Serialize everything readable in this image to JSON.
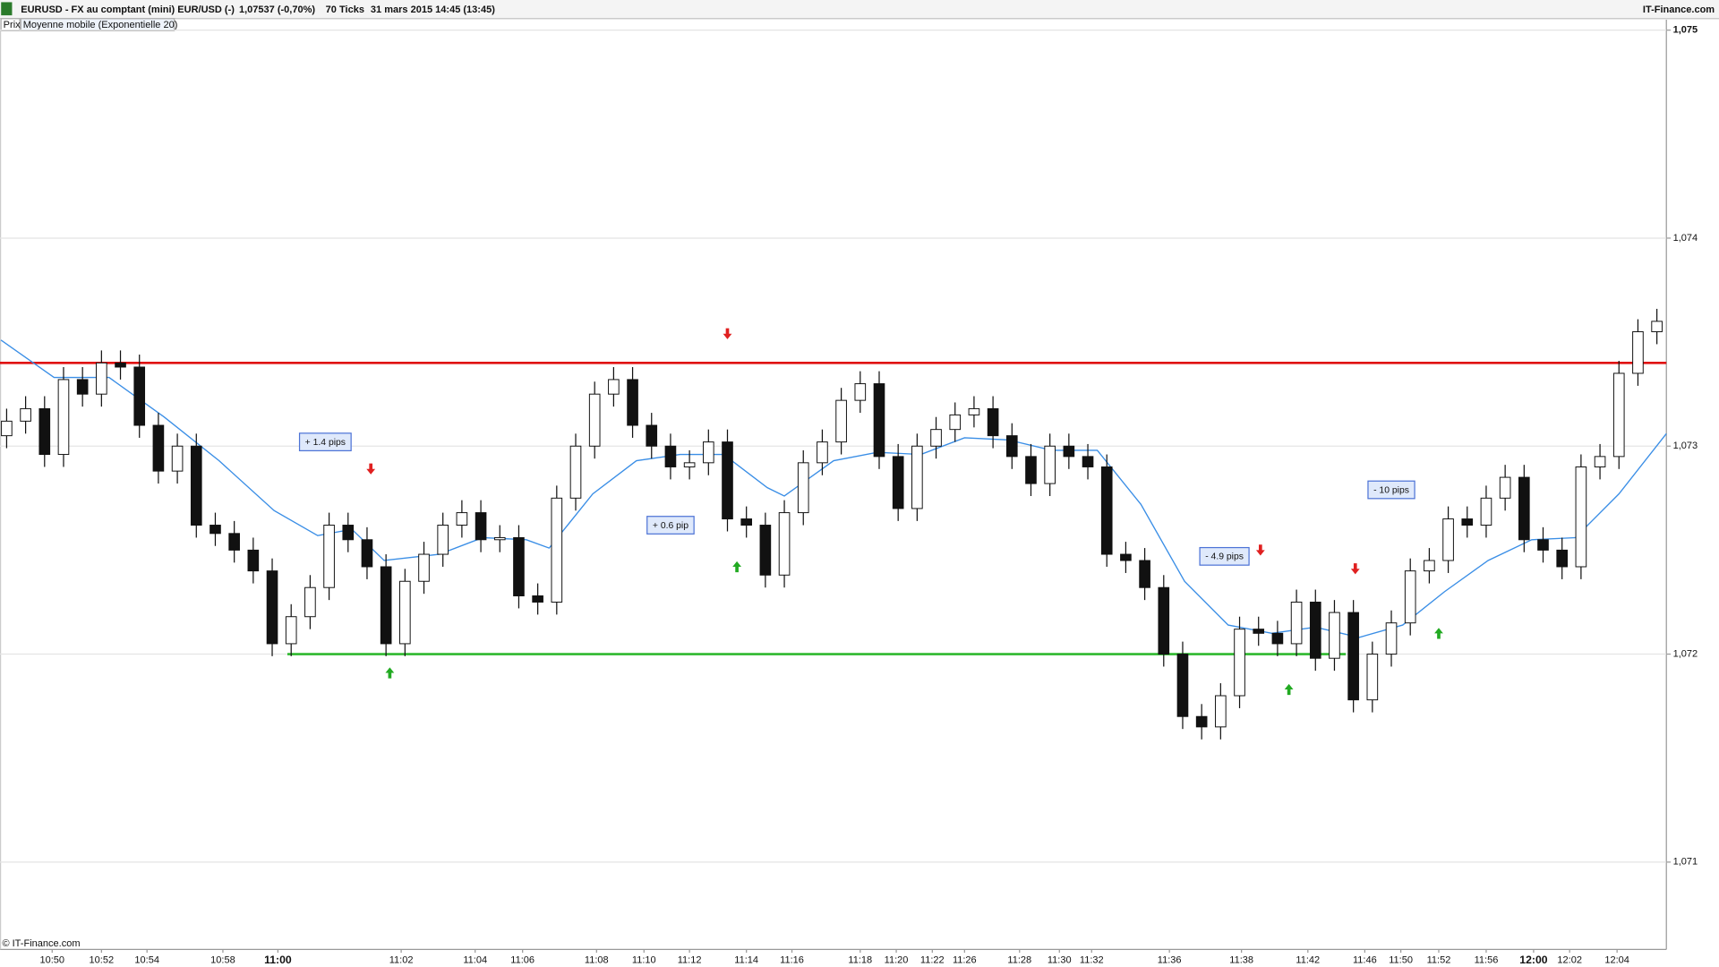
{
  "chart_data": {
    "type": "candlestick",
    "title": "EURUSD - FX au comptant (mini) EUR/USD (-)",
    "last_price": "1,07537 (-0,70%)",
    "interval": "70 Ticks",
    "date": "31 mars 2015 14:45 (13:45)",
    "source": "IT-Finance.com",
    "panel_label": "Prix",
    "copyright": "© IT-Finance.com",
    "x": [
      0,
      1,
      2,
      3,
      4,
      5,
      6,
      7,
      8,
      9,
      10,
      11,
      12,
      13,
      14,
      15,
      16,
      17,
      18,
      19,
      20,
      21,
      22,
      23,
      24,
      25,
      26,
      27,
      28,
      29,
      30,
      31,
      32,
      33,
      34,
      35,
      36,
      37,
      38,
      39,
      40,
      41,
      42,
      43,
      44,
      45,
      46,
      47,
      48,
      49,
      50,
      51,
      52,
      53,
      54,
      55,
      56,
      57,
      58,
      59,
      60,
      61,
      62,
      63,
      64,
      65,
      66,
      67,
      68,
      69,
      70,
      71,
      72,
      73,
      74,
      75,
      76,
      77,
      78,
      79,
      80,
      81,
      82,
      83,
      84,
      85,
      86,
      87
    ],
    "open": [
      1.07305,
      1.07312,
      1.07318,
      1.07296,
      1.07332,
      1.07325,
      1.0734,
      1.07338,
      1.0731,
      1.07288,
      1.073,
      1.07262,
      1.07258,
      1.0725,
      1.0724,
      1.07205,
      1.07218,
      1.07232,
      1.07262,
      1.07255,
      1.07242,
      1.07205,
      1.07235,
      1.07248,
      1.07262,
      1.07268,
      1.07255,
      1.07256,
      1.07228,
      1.07225,
      1.07275,
      1.073,
      1.07325,
      1.07332,
      1.0731,
      1.073,
      1.0729,
      1.07292,
      1.07302,
      1.07265,
      1.07262,
      1.07238,
      1.07268,
      1.07292,
      1.07302,
      1.07322,
      1.0733,
      1.07295,
      1.0727,
      1.073,
      1.07308,
      1.07315,
      1.07318,
      1.07305,
      1.07295,
      1.07282,
      1.073,
      1.07295,
      1.0729,
      1.07248,
      1.07245,
      1.07232,
      1.072,
      1.0717,
      1.07165,
      1.0718,
      1.07212,
      1.0721,
      1.07205,
      1.07225,
      1.07198,
      1.0722,
      1.07178,
      1.072,
      1.07215,
      1.0724,
      1.07245,
      1.07265,
      1.07262,
      1.07275,
      1.07285,
      1.07255,
      1.0725,
      1.07242,
      1.0729,
      1.07295,
      1.07335,
      1.07355
    ],
    "high": [
      1.07318,
      1.07324,
      1.07324,
      1.07338,
      1.07338,
      1.07346,
      1.07346,
      1.07344,
      1.07316,
      1.07306,
      1.07306,
      1.07268,
      1.07264,
      1.07256,
      1.07246,
      1.07224,
      1.07238,
      1.07268,
      1.07268,
      1.07261,
      1.07248,
      1.07241,
      1.07254,
      1.07268,
      1.07274,
      1.07274,
      1.07262,
      1.07262,
      1.07234,
      1.07281,
      1.07306,
      1.07331,
      1.07338,
      1.07338,
      1.07316,
      1.07306,
      1.07298,
      1.07308,
      1.07308,
      1.07271,
      1.07268,
      1.07274,
      1.07298,
      1.07308,
      1.07328,
      1.07336,
      1.07336,
      1.07301,
      1.07306,
      1.07314,
      1.07321,
      1.07324,
      1.07324,
      1.07311,
      1.07301,
      1.07306,
      1.07306,
      1.07301,
      1.07296,
      1.07254,
      1.07251,
      1.07238,
      1.07206,
      1.07176,
      1.07186,
      1.07218,
      1.07218,
      1.07216,
      1.07231,
      1.07231,
      1.07226,
      1.07226,
      1.07206,
      1.07221,
      1.07246,
      1.07251,
      1.07271,
      1.07271,
      1.07281,
      1.07291,
      1.07291,
      1.07261,
      1.07256,
      1.07296,
      1.07301,
      1.07341,
      1.07361,
      1.07366
    ],
    "low": [
      1.07299,
      1.07306,
      1.0729,
      1.0729,
      1.07319,
      1.07319,
      1.07332,
      1.07304,
      1.07282,
      1.07282,
      1.07256,
      1.07252,
      1.07244,
      1.07234,
      1.07199,
      1.07199,
      1.07212,
      1.07226,
      1.07249,
      1.07236,
      1.07199,
      1.07199,
      1.07229,
      1.07242,
      1.07256,
      1.07249,
      1.07249,
      1.07222,
      1.07219,
      1.07219,
      1.07269,
      1.07294,
      1.07319,
      1.07304,
      1.07294,
      1.07284,
      1.07284,
      1.07286,
      1.07259,
      1.07256,
      1.07232,
      1.07232,
      1.07262,
      1.07286,
      1.07296,
      1.07316,
      1.07289,
      1.07264,
      1.07264,
      1.07294,
      1.07302,
      1.07309,
      1.07299,
      1.07289,
      1.07276,
      1.07276,
      1.07289,
      1.07284,
      1.07242,
      1.07239,
      1.07226,
      1.07194,
      1.07164,
      1.07159,
      1.07159,
      1.07174,
      1.07204,
      1.07199,
      1.07199,
      1.07192,
      1.07192,
      1.07172,
      1.07172,
      1.07194,
      1.07209,
      1.07234,
      1.07239,
      1.07256,
      1.07256,
      1.07269,
      1.07249,
      1.07244,
      1.07236,
      1.07236,
      1.07284,
      1.07289,
      1.07329,
      1.07349
    ],
    "close": [
      1.07312,
      1.07318,
      1.07296,
      1.07332,
      1.07325,
      1.0734,
      1.07338,
      1.0731,
      1.07288,
      1.073,
      1.07262,
      1.07258,
      1.0725,
      1.0724,
      1.07205,
      1.07218,
      1.07232,
      1.07262,
      1.07255,
      1.07242,
      1.07205,
      1.07235,
      1.07248,
      1.07262,
      1.07268,
      1.07255,
      1.07256,
      1.07228,
      1.07225,
      1.07275,
      1.073,
      1.07325,
      1.07332,
      1.0731,
      1.073,
      1.0729,
      1.07292,
      1.07302,
      1.07265,
      1.07262,
      1.07238,
      1.07268,
      1.07292,
      1.07302,
      1.07322,
      1.0733,
      1.07295,
      1.0727,
      1.073,
      1.07308,
      1.07315,
      1.07318,
      1.07305,
      1.07295,
      1.07282,
      1.073,
      1.07295,
      1.0729,
      1.07248,
      1.07245,
      1.07232,
      1.072,
      1.0717,
      1.07165,
      1.0718,
      1.07212,
      1.0721,
      1.07205,
      1.07225,
      1.07198,
      1.0722,
      1.07178,
      1.072,
      1.07215,
      1.0724,
      1.07245,
      1.07265,
      1.07262,
      1.07275,
      1.07285,
      1.07255,
      1.0725,
      1.07242,
      1.0729,
      1.07295,
      1.07335,
      1.07355,
      1.0736
    ],
    "up_color": "#ffffff",
    "down_color": "#111111",
    "series": [
      {
        "name": "Moyenne mobile (Exponentielle 20)",
        "color": "#3a8ee6",
        "x": [
          -0.3,
          2.5,
          5.4,
          8.3,
          11.2,
          14.1,
          16.4,
          18.2,
          19.9,
          22.8,
          25.1,
          27.4,
          28.6,
          30.9,
          33.2,
          35.5,
          37.8,
          40.1,
          41.0,
          43.6,
          45.9,
          48.2,
          50.5,
          52.8,
          55.1,
          57.5,
          59.8,
          62.1,
          64.4,
          66.7,
          69.0,
          71.3,
          73.6,
          75.8,
          78.1,
          80.4,
          82.7,
          85.0,
          87.5
        ],
        "values": [
          1.07351,
          1.07333,
          1.07333,
          1.07314,
          1.07293,
          1.07269,
          1.07257,
          1.0726,
          1.07245,
          1.07248,
          1.07256,
          1.07255,
          1.07251,
          1.07277,
          1.07293,
          1.07296,
          1.07296,
          1.0728,
          1.07276,
          1.07293,
          1.07297,
          1.07296,
          1.07304,
          1.07303,
          1.07298,
          1.07298,
          1.07272,
          1.07235,
          1.07214,
          1.0721,
          1.07213,
          1.07208,
          1.07214,
          1.0723,
          1.07245,
          1.07255,
          1.07256,
          1.07277,
          1.07306
        ]
      }
    ],
    "hlines": [
      {
        "value": 1.0734,
        "color": "#e01010"
      },
      {
        "value": 1.072,
        "color": "#2eb82e",
        "x": [
          14.8,
          70.6
        ]
      }
    ],
    "signals": [
      {
        "direction": "down",
        "x": 38.0,
        "y": 1.07354,
        "color": "#e02020"
      },
      {
        "direction": "down",
        "x": 19.2,
        "y": 1.07289,
        "color": "#e02020"
      },
      {
        "direction": "down",
        "x": 66.1,
        "y": 1.0725,
        "color": "#e02020"
      },
      {
        "direction": "down",
        "x": 71.1,
        "y": 1.07241,
        "color": "#e02020"
      },
      {
        "direction": "up",
        "x": 20.2,
        "y": 1.07191,
        "color": "#22aa22"
      },
      {
        "direction": "up",
        "x": 38.5,
        "y": 1.07242,
        "color": "#22aa22"
      },
      {
        "direction": "up",
        "x": 67.6,
        "y": 1.07183,
        "color": "#22aa22"
      },
      {
        "direction": "up",
        "x": 75.5,
        "y": 1.0721,
        "color": "#22aa22"
      }
    ],
    "annotations": [
      {
        "text": "+ 1.4 pips",
        "x": 16.8,
        "y": 1.07302
      },
      {
        "text": "+ 0.6 pip",
        "x": 35.0,
        "y": 1.07262
      },
      {
        "text": "- 4.9 pips",
        "x": 64.2,
        "y": 1.07247
      },
      {
        "text": "- 10 pips",
        "x": 73.0,
        "y": 1.07279
      }
    ],
    "xlim": [
      -0.35,
      87.5
    ],
    "xticks": [
      {
        "value": 2.4,
        "label": "10:50"
      },
      {
        "value": 5.0,
        "label": "10:52"
      },
      {
        "value": 7.4,
        "label": "10:54"
      },
      {
        "value": 11.4,
        "label": "10:58"
      },
      {
        "value": 14.3,
        "label": "11:00"
      },
      {
        "value": 20.8,
        "label": "11:02"
      },
      {
        "value": 24.7,
        "label": "11:04"
      },
      {
        "value": 27.2,
        "label": "11:06"
      },
      {
        "value": 31.1,
        "label": "11:08"
      },
      {
        "value": 33.6,
        "label": "11:10"
      },
      {
        "value": 36.0,
        "label": "11:12"
      },
      {
        "value": 39.0,
        "label": "11:14"
      },
      {
        "value": 41.4,
        "label": "11:16"
      },
      {
        "value": 45.0,
        "label": "11:18"
      },
      {
        "value": 46.9,
        "label": "11:20"
      },
      {
        "value": 48.8,
        "label": "11:22"
      },
      {
        "value": 50.5,
        "label": "11:26"
      },
      {
        "value": 53.4,
        "label": "11:28"
      },
      {
        "value": 55.5,
        "label": "11:30"
      },
      {
        "value": 57.2,
        "label": "11:32"
      },
      {
        "value": 61.3,
        "label": "11:36"
      },
      {
        "value": 65.1,
        "label": "11:38"
      },
      {
        "value": 68.6,
        "label": "11:42"
      },
      {
        "value": 71.6,
        "label": "11:46"
      },
      {
        "value": 73.5,
        "label": "11:50"
      },
      {
        "value": 75.5,
        "label": "11:52"
      },
      {
        "value": 78.0,
        "label": "11:56"
      },
      {
        "value": 80.5,
        "label": "12:00"
      },
      {
        "value": 82.4,
        "label": "12:02"
      },
      {
        "value": 84.9,
        "label": "12:04"
      }
    ],
    "ylim": [
      1.07058,
      1.07505
    ],
    "yticks": [
      {
        "value": 1.071,
        "label": "1,071"
      },
      {
        "value": 1.072,
        "label": "1,072"
      },
      {
        "value": 1.073,
        "label": "1,073"
      },
      {
        "value": 1.074,
        "label": "1,074"
      },
      {
        "value": 1.075,
        "label": "1,075"
      }
    ],
    "grid": true
  }
}
